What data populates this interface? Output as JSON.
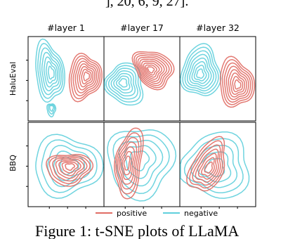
{
  "top_text": "], 20, 6, 9, 27].",
  "figure": {
    "column_titles": [
      "#layer 1",
      "#layer 17",
      "#layer 32"
    ],
    "row_labels": [
      "HaluEval",
      "BBQ"
    ],
    "legend": [
      "positive",
      "negative"
    ]
  },
  "caption": "Figure 1: t-SNE plots of LLaMA"
}
